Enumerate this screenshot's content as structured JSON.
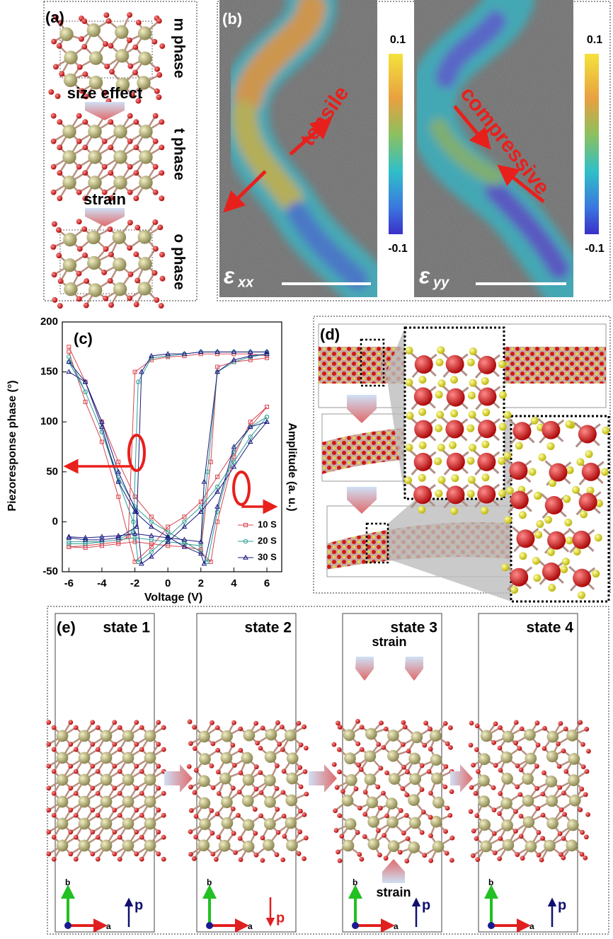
{
  "panel_a": {
    "label": "(a)",
    "phases": [
      "m phase",
      "t phase",
      "o phase"
    ],
    "transitions": [
      "size effect",
      "strain"
    ]
  },
  "panel_b": {
    "label": "(b)",
    "maps": [
      {
        "symbol": "ε",
        "subscript": "xx",
        "annotation": "tensile",
        "colorbar_max": 0.1,
        "colorbar_min": -0.1
      },
      {
        "symbol": "ε",
        "subscript": "yy",
        "annotation": "compressive",
        "colorbar_max": 0.1,
        "colorbar_min": -0.1
      }
    ]
  },
  "chart_data": {
    "type": "line",
    "panel_label": "(c)",
    "x_label": "Voltage (V)",
    "y_label": "Piezoresponse phase (°)",
    "y2_label": "Amplitude (a. u.)",
    "xlim": [
      -6.4,
      6.9
    ],
    "xticks": [
      -6,
      -4,
      -2,
      0,
      2,
      4,
      6
    ],
    "ylim": [
      -50,
      200
    ],
    "yticks": [
      -50,
      0,
      50,
      100,
      150,
      200
    ],
    "y2lim": [
      -50,
      200
    ],
    "legend": "lower right",
    "series": [
      {
        "name": "10 S",
        "color": "#d8454f",
        "marker": "square",
        "x": [
          -6,
          -5,
          -4,
          -3,
          -2,
          -1,
          0,
          1,
          2,
          2.6,
          3,
          4,
          5,
          6,
          6,
          5,
          4,
          3,
          2,
          1,
          0,
          -1,
          -2,
          -2.4,
          -3,
          -4,
          -5,
          -6
        ],
        "values": [
          -25,
          -26,
          -24,
          -22,
          -20,
          -22,
          -24,
          -25,
          -28,
          60,
          155,
          160,
          162,
          164,
          166,
          168,
          168,
          168,
          168,
          166,
          165,
          162,
          150,
          -15,
          -20,
          -22,
          -24,
          -25
        ],
        "amplitude": [
          175,
          140,
          100,
          60,
          25,
          5,
          -10,
          -20,
          -30,
          -40,
          0,
          65,
          100,
          115,
          115,
          95,
          70,
          45,
          20,
          5,
          -5,
          -25,
          -40,
          -15,
          25,
          80,
          120,
          170
        ]
      },
      {
        "name": "20 S",
        "color": "#2e9c95",
        "marker": "circle",
        "x": [
          -6,
          -5,
          -4,
          -3,
          -2,
          -1,
          0,
          1,
          2,
          2.4,
          3,
          4,
          5,
          6,
          6,
          5,
          4,
          3,
          2,
          1,
          0,
          -1,
          -1.8,
          -2.1,
          -3,
          -4,
          -5,
          -6
        ],
        "values": [
          -20,
          -20,
          -20,
          -18,
          -16,
          -18,
          -20,
          -22,
          -24,
          50,
          150,
          160,
          165,
          168,
          170,
          170,
          170,
          170,
          170,
          168,
          166,
          164,
          140,
          -10,
          -18,
          -20,
          -22,
          -22
        ],
        "amplitude": [
          160,
          130,
          90,
          45,
          15,
          0,
          -10,
          -20,
          -30,
          -40,
          10,
          70,
          95,
          105,
          105,
          85,
          60,
          35,
          15,
          0,
          -15,
          -30,
          -40,
          0,
          40,
          90,
          130,
          165
        ]
      },
      {
        "name": "30 S",
        "color": "#1a1a80",
        "marker": "triangle",
        "x": [
          -6,
          -5,
          -4,
          -3,
          -2,
          -1,
          0,
          1,
          2,
          2.2,
          3,
          4,
          5,
          6,
          6,
          5,
          4,
          3,
          2,
          1,
          0,
          -1,
          -1.6,
          -1.9,
          -3,
          -4,
          -5,
          -6
        ],
        "values": [
          -15,
          -16,
          -15,
          -14,
          -12,
          -14,
          -16,
          -18,
          -20,
          40,
          150,
          162,
          166,
          168,
          170,
          170,
          170,
          170,
          170,
          168,
          168,
          166,
          150,
          -5,
          -16,
          -18,
          -18,
          -16
        ],
        "amplitude": [
          150,
          140,
          95,
          40,
          10,
          -5,
          -15,
          -25,
          -32,
          -42,
          15,
          75,
          95,
          100,
          100,
          80,
          55,
          30,
          10,
          -5,
          -20,
          -35,
          -42,
          10,
          50,
          100,
          140,
          160
        ]
      }
    ]
  },
  "panel_d": {
    "label": "(d)"
  },
  "panel_e": {
    "label": "(e)",
    "strain_labels": [
      "strain",
      "strain"
    ],
    "states": [
      {
        "title": "state 1",
        "axis_b": "b",
        "axis_a": "a",
        "polarization": "p"
      },
      {
        "title": "state 2",
        "axis_b": "b",
        "axis_a": "a",
        "polarization": "p"
      },
      {
        "title": "state 3",
        "axis_b": "b",
        "axis_a": "a",
        "polarization": "p"
      },
      {
        "title": "state 4",
        "axis_b": "b",
        "axis_a": "a",
        "polarization": "p"
      }
    ]
  }
}
